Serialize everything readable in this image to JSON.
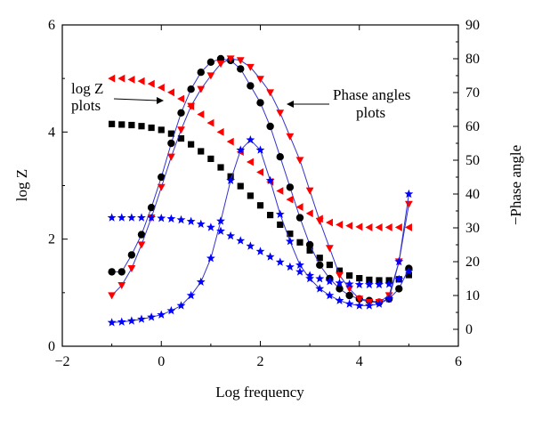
{
  "chart_data": {
    "type": "scatter",
    "xlabel": "Log frequency",
    "ylabel_left": "log Z",
    "ylabel_right": "−Phase angle",
    "xlim": [
      -2,
      6
    ],
    "ylim_left": [
      0,
      6
    ],
    "ylim_right": [
      -5,
      90
    ],
    "x_ticks": [
      "−2",
      "0",
      "2",
      "4",
      "6"
    ],
    "y_left_ticks": [
      "0",
      "2",
      "4",
      "6"
    ],
    "y_right_ticks": [
      "0",
      "10",
      "20",
      "30",
      "40",
      "50",
      "60",
      "70",
      "80",
      "90"
    ],
    "annotations": [
      {
        "lines": [
          "log Z",
          "plots"
        ]
      },
      {
        "lines": [
          "Phase angles",
          "plots"
        ]
      }
    ],
    "series": [
      {
        "marker": "square",
        "color": "#000000",
        "axis": "left",
        "connect": false,
        "points": [
          [
            -1,
            4.15
          ],
          [
            -0.8,
            4.14
          ],
          [
            -0.6,
            4.13
          ],
          [
            -0.4,
            4.11
          ],
          [
            -0.2,
            4.08
          ],
          [
            0,
            4.04
          ],
          [
            0.2,
            3.97
          ],
          [
            0.4,
            3.88
          ],
          [
            0.6,
            3.77
          ],
          [
            0.8,
            3.64
          ],
          [
            1,
            3.5
          ],
          [
            1.2,
            3.34
          ],
          [
            1.4,
            3.17
          ],
          [
            1.6,
            2.99
          ],
          [
            1.8,
            2.81
          ],
          [
            2,
            2.63
          ],
          [
            2.2,
            2.45
          ],
          [
            2.4,
            2.27
          ],
          [
            2.6,
            2.1
          ],
          [
            2.8,
            1.94
          ],
          [
            3,
            1.79
          ],
          [
            3.2,
            1.65
          ],
          [
            3.4,
            1.52
          ],
          [
            3.6,
            1.41
          ],
          [
            3.8,
            1.32
          ],
          [
            4,
            1.27
          ],
          [
            4.2,
            1.24
          ],
          [
            4.4,
            1.23
          ],
          [
            4.6,
            1.23
          ],
          [
            4.8,
            1.25
          ],
          [
            5,
            1.33
          ]
        ]
      },
      {
        "marker": "circle",
        "color": "#000000",
        "axis": "right",
        "connect": true,
        "line_color": "#3333cc",
        "points": [
          [
            -1,
            17
          ],
          [
            -0.8,
            17
          ],
          [
            -0.6,
            22
          ],
          [
            -0.4,
            28
          ],
          [
            -0.2,
            36
          ],
          [
            0,
            45
          ],
          [
            0.2,
            55
          ],
          [
            0.4,
            64
          ],
          [
            0.6,
            71
          ],
          [
            0.8,
            76
          ],
          [
            1,
            79
          ],
          [
            1.2,
            80
          ],
          [
            1.4,
            79.5
          ],
          [
            1.6,
            77
          ],
          [
            1.8,
            72
          ],
          [
            2,
            67
          ],
          [
            2.2,
            60
          ],
          [
            2.4,
            51
          ],
          [
            2.6,
            42
          ],
          [
            2.8,
            33
          ],
          [
            3,
            25
          ],
          [
            3.2,
            19
          ],
          [
            3.4,
            15
          ],
          [
            3.6,
            12
          ],
          [
            3.8,
            10
          ],
          [
            4,
            9
          ],
          [
            4.2,
            8.5
          ],
          [
            4.4,
            8
          ],
          [
            4.6,
            9
          ],
          [
            4.8,
            12
          ],
          [
            5,
            18
          ]
        ]
      },
      {
        "marker": "triangle-down",
        "color": "#ff0000",
        "axis": "right",
        "connect": true,
        "line_color": "#3333cc",
        "points": [
          [
            -1,
            10
          ],
          [
            -0.8,
            13
          ],
          [
            -0.6,
            18
          ],
          [
            -0.4,
            25
          ],
          [
            -0.2,
            33
          ],
          [
            0,
            42
          ],
          [
            0.2,
            51
          ],
          [
            0.4,
            59
          ],
          [
            0.6,
            66
          ],
          [
            0.8,
            71
          ],
          [
            1,
            75
          ],
          [
            1.2,
            78.5
          ],
          [
            1.4,
            80
          ],
          [
            1.6,
            79.5
          ],
          [
            1.8,
            77.5
          ],
          [
            2,
            74
          ],
          [
            2.2,
            70
          ],
          [
            2.4,
            64
          ],
          [
            2.6,
            57
          ],
          [
            2.8,
            50
          ],
          [
            3,
            41
          ],
          [
            3.2,
            32
          ],
          [
            3.4,
            24
          ],
          [
            3.6,
            16
          ],
          [
            3.8,
            12
          ],
          [
            4,
            9
          ],
          [
            4.2,
            8
          ],
          [
            4.4,
            8
          ],
          [
            4.6,
            10
          ],
          [
            4.8,
            20
          ],
          [
            5,
            37
          ]
        ]
      },
      {
        "marker": "triangle-left",
        "color": "#ff0000",
        "axis": "left",
        "connect": false,
        "points": [
          [
            -1,
            5.0
          ],
          [
            -0.8,
            5.0
          ],
          [
            -0.6,
            4.98
          ],
          [
            -0.4,
            4.95
          ],
          [
            -0.2,
            4.9
          ],
          [
            0,
            4.83
          ],
          [
            0.2,
            4.74
          ],
          [
            0.4,
            4.62
          ],
          [
            0.6,
            4.48
          ],
          [
            0.8,
            4.33
          ],
          [
            1,
            4.17
          ],
          [
            1.2,
            4.0
          ],
          [
            1.4,
            3.82
          ],
          [
            1.6,
            3.63
          ],
          [
            1.8,
            3.44
          ],
          [
            2,
            3.25
          ],
          [
            2.2,
            3.07
          ],
          [
            2.4,
            2.9
          ],
          [
            2.6,
            2.74
          ],
          [
            2.8,
            2.6
          ],
          [
            3,
            2.48
          ],
          [
            3.2,
            2.38
          ],
          [
            3.4,
            2.31
          ],
          [
            3.6,
            2.27
          ],
          [
            3.8,
            2.25
          ],
          [
            4,
            2.23
          ],
          [
            4.2,
            2.22
          ],
          [
            4.4,
            2.22
          ],
          [
            4.6,
            2.22
          ],
          [
            4.8,
            2.22
          ],
          [
            5,
            2.22
          ]
        ]
      },
      {
        "marker": "star",
        "color": "#0000ff",
        "axis": "left",
        "connect": false,
        "points": [
          [
            -1,
            2.4
          ],
          [
            -0.8,
            2.4
          ],
          [
            -0.6,
            2.4
          ],
          [
            -0.4,
            2.4
          ],
          [
            -0.2,
            2.4
          ],
          [
            0,
            2.39
          ],
          [
            0.2,
            2.38
          ],
          [
            0.4,
            2.36
          ],
          [
            0.6,
            2.33
          ],
          [
            0.8,
            2.28
          ],
          [
            1,
            2.22
          ],
          [
            1.2,
            2.15
          ],
          [
            1.4,
            2.06
          ],
          [
            1.6,
            1.97
          ],
          [
            1.8,
            1.87
          ],
          [
            2,
            1.77
          ],
          [
            2.2,
            1.67
          ],
          [
            2.4,
            1.57
          ],
          [
            2.6,
            1.48
          ],
          [
            2.8,
            1.39
          ],
          [
            3,
            1.32
          ],
          [
            3.2,
            1.26
          ],
          [
            3.4,
            1.21
          ],
          [
            3.6,
            1.18
          ],
          [
            3.8,
            1.16
          ],
          [
            4,
            1.15
          ],
          [
            4.2,
            1.15
          ],
          [
            4.4,
            1.15
          ],
          [
            4.6,
            1.16
          ],
          [
            4.8,
            1.25
          ],
          [
            5,
            1.4
          ]
        ]
      },
      {
        "marker": "star",
        "color": "#0000ff",
        "axis": "right",
        "connect": true,
        "line_color": "#3333cc",
        "points": [
          [
            -1,
            2
          ],
          [
            -0.8,
            2.2
          ],
          [
            -0.6,
            2.5
          ],
          [
            -0.4,
            3
          ],
          [
            -0.2,
            3.6
          ],
          [
            0,
            4.3
          ],
          [
            0.2,
            5.5
          ],
          [
            0.4,
            7
          ],
          [
            0.6,
            10
          ],
          [
            0.8,
            14
          ],
          [
            1,
            21
          ],
          [
            1.2,
            32
          ],
          [
            1.4,
            44
          ],
          [
            1.6,
            53
          ],
          [
            1.8,
            56
          ],
          [
            2,
            53
          ],
          [
            2.2,
            44
          ],
          [
            2.4,
            34
          ],
          [
            2.6,
            26
          ],
          [
            2.8,
            19
          ],
          [
            3,
            15
          ],
          [
            3.2,
            12
          ],
          [
            3.4,
            10
          ],
          [
            3.6,
            8.5
          ],
          [
            3.8,
            7.5
          ],
          [
            4,
            7
          ],
          [
            4.2,
            7
          ],
          [
            4.4,
            7.5
          ],
          [
            4.6,
            9
          ],
          [
            4.8,
            20
          ],
          [
            5,
            40
          ]
        ]
      }
    ]
  }
}
